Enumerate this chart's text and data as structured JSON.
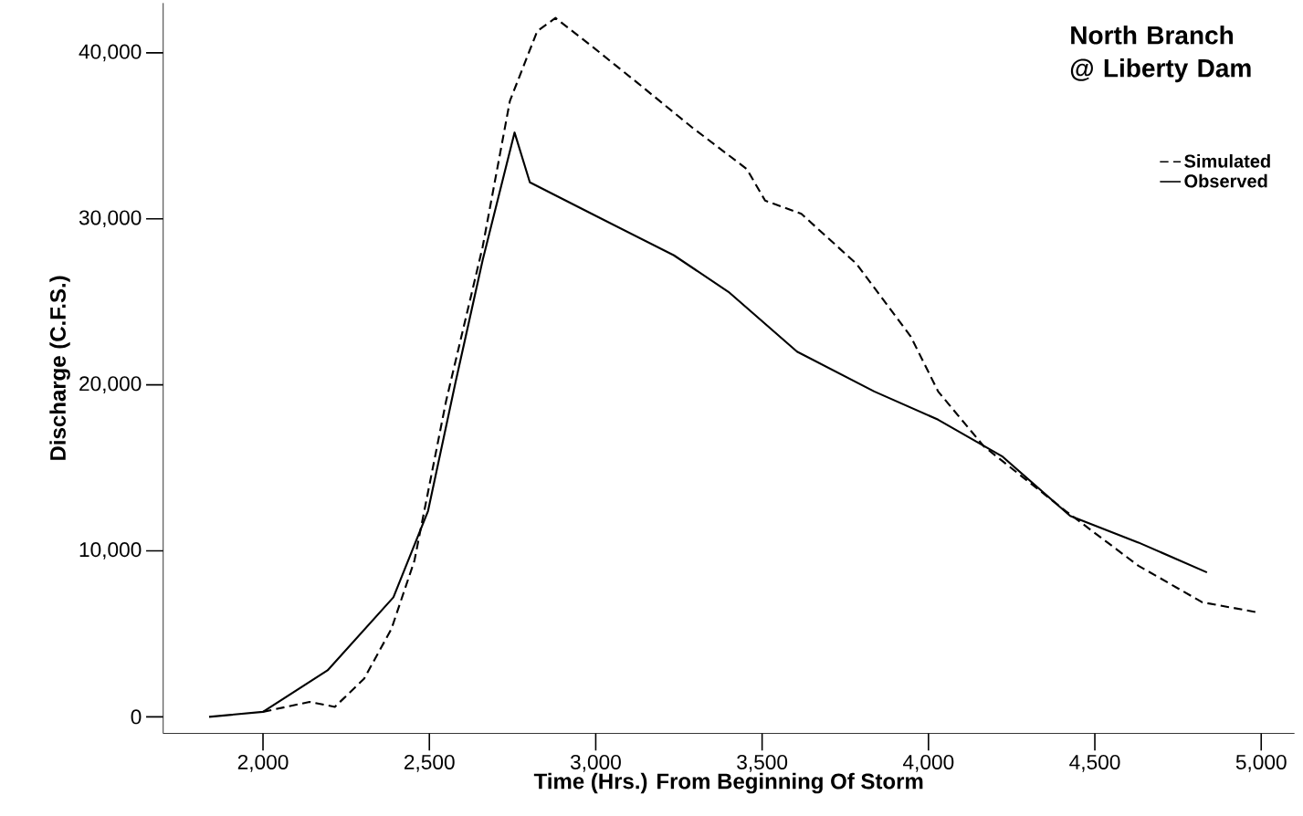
{
  "chart_data": {
    "type": "line",
    "legend_title": "North Branch @ Liberty Dam",
    "xlabel": "Time (Hrs.) From Beginning Of Storm",
    "ylabel": "Discharge (C.F.S.)",
    "xticks": [
      {
        "value": 2000,
        "label": "2,000"
      },
      {
        "value": 2500,
        "label": "2,500"
      },
      {
        "value": 3000,
        "label": "3,000"
      },
      {
        "value": 3500,
        "label": "3,500"
      },
      {
        "value": 4000,
        "label": "4,000"
      },
      {
        "value": 4500,
        "label": "4,500"
      },
      {
        "value": 5000,
        "label": "5,000"
      }
    ],
    "yticks": [
      0,
      {
        "value": 10000,
        "label": "10,000"
      },
      {
        "value": 20000,
        "label": "20,000"
      },
      {
        "value": 30000,
        "label": "30,000"
      },
      {
        "value": 40000,
        "label": "40,000"
      }
    ],
    "xlim": [
      1700,
      5100
    ],
    "ylim": [
      -1000,
      43000
    ],
    "legend": "top right",
    "series": [
      {
        "name": "Simulated",
        "color": "#000000",
        "line_style": "dashed",
        "x": [
          2000,
          2140,
          2216,
          2304,
          2386,
          2455,
          2550,
          2660,
          2742,
          2824,
          2879,
          2988,
          3125,
          3290,
          3454,
          3509,
          3618,
          3783,
          3947,
          4029,
          4166,
          4412,
          4631,
          4823,
          4987
        ],
        "values": [
          300,
          900,
          600,
          2300,
          5300,
          9400,
          19000,
          28300,
          37100,
          41300,
          42100,
          40400,
          38200,
          35500,
          33000,
          31100,
          30300,
          27300,
          22900,
          19600,
          16300,
          12400,
          9100,
          6900,
          6300
        ]
      },
      {
        "name": "Observed",
        "color": "#000000",
        "line_style": "solid",
        "x": [
          1838,
          2000,
          2194,
          2392,
          2496,
          2578,
          2660,
          2756,
          2802,
          2988,
          3235,
          3399,
          3605,
          3837,
          4029,
          4221,
          4426,
          4631,
          4837
        ],
        "values": [
          0,
          300,
          2800,
          7200,
          12400,
          20100,
          27500,
          35200,
          32200,
          30300,
          27800,
          25600,
          22000,
          19600,
          17900,
          15700,
          12100,
          10500,
          8700
        ]
      }
    ]
  }
}
